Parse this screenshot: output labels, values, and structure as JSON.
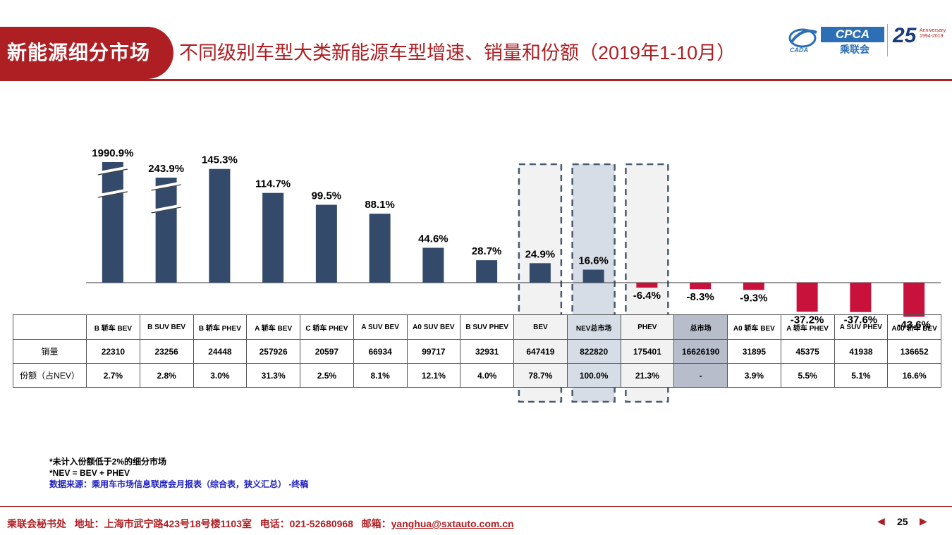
{
  "header": {
    "section_title": "新能源细分市场",
    "subtitle": "不同级别车型大类新能源车型增速、销量和份额（2019年1-10月）",
    "logo_cpca": "CPCA",
    "logo_cpca_cn": "乘联会",
    "logo_cada": "CADA",
    "anniversary_num": "25",
    "anniversary_text": "Anniversary 1994-2019"
  },
  "colors": {
    "brand_red": "#ae1f23",
    "positive_bar": "#334a6b",
    "negative_bar": "#c8123c",
    "highlight_bg": "#f2f2f2",
    "highlight_nev": "#d6dde6",
    "total_market_bg": "#b7bdcb"
  },
  "chart_data": {
    "type": "bar",
    "categories": [
      "B 轿车 BEV",
      "B SUV BEV",
      "B 轿车 PHEV",
      "A 轿车 BEV",
      "C 轿车 PHEV",
      "A SUV BEV",
      "A0 SUV BEV",
      "B SUV PHEV",
      "BEV",
      "NEV总市场",
      "PHEV",
      "总市场",
      "A0 轿车 BEV",
      "A 轿车 PHEV",
      "A SUV PHEV",
      "A00 轿车 BEV"
    ],
    "series": [
      {
        "values": [
          1990.9,
          243.9,
          145.3,
          114.7,
          99.5,
          88.1,
          44.6,
          28.7,
          24.9,
          16.6,
          -6.4,
          -8.3,
          -9.3,
          -37.2,
          -37.6,
          -43.6
        ]
      }
    ],
    "value_labels": [
      "1990.9%",
      "243.9%",
      "145.3%",
      "114.7%",
      "99.5%",
      "88.1%",
      "44.6%",
      "28.7%",
      "24.9%",
      "16.6%",
      "-6.4%",
      "-8.3%",
      "-9.3%",
      "-37.2%",
      "-37.6%",
      "-43.6%"
    ],
    "broken_axis_bars": [
      0,
      1
    ],
    "highlighted_categories": [
      8,
      9,
      10
    ],
    "title": "",
    "xlabel": "",
    "ylabel": ""
  },
  "table": {
    "row_labels": [
      "销量",
      "份额（占NEV）"
    ],
    "sales": [
      "22310",
      "23256",
      "24448",
      "257926",
      "20597",
      "66934",
      "99717",
      "32931",
      "647419",
      "822820",
      "175401",
      "16626190",
      "31895",
      "45375",
      "41938",
      "136652"
    ],
    "share": [
      "2.7%",
      "2.8%",
      "3.0%",
      "31.3%",
      "2.5%",
      "8.1%",
      "12.1%",
      "4.0%",
      "78.7%",
      "100.0%",
      "21.3%",
      "-",
      "3.9%",
      "5.5%",
      "5.1%",
      "16.6%"
    ]
  },
  "notes": {
    "line1": "*未计入份额低于2%的细分市场",
    "line2": "*NEV = BEV + PHEV",
    "source": "数据来源：乘用车市场信息联席会月报表（综合表，狭义汇总） -终稿"
  },
  "footer": {
    "org": "乘联会秘书处",
    "address": "地址：上海市武宁路423号18号楼1103室",
    "phone": "电话：021-52680968",
    "email_label": "邮箱：",
    "email": "yanghua@sxtauto.com.cn",
    "page_number": "25",
    "prev_label": "◀",
    "next_label": "▶"
  }
}
